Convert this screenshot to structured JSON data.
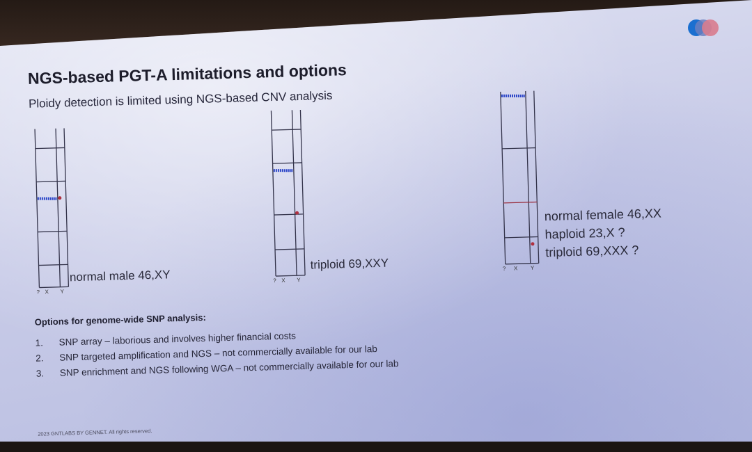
{
  "slide": {
    "title": "NGS-based PGT-A limitations and options",
    "subtitle": "Ploidy detection is limited using NGS-based CNV analysis"
  },
  "plots": [
    {
      "label": "normal male 46,XY",
      "axis_labels": [
        "?",
        "X",
        "Y"
      ]
    },
    {
      "label": "triploid 69,XXY",
      "axis_labels": [
        "?",
        "X",
        "Y"
      ]
    },
    {
      "labels": [
        "normal female 46,XX",
        "haploid 23,X ?",
        "triploid 69,XXX ?"
      ],
      "axis_labels": [
        "?",
        "X",
        "Y"
      ]
    }
  ],
  "options": {
    "heading": "Options for genome-wide SNP analysis:",
    "items": [
      {
        "num": "1.",
        "text": "SNP array – laborious and involves higher financial costs"
      },
      {
        "num": "2.",
        "text": "SNP targeted amplification and NGS – not commercially available for our lab"
      },
      {
        "num": "3.",
        "text": "SNP enrichment and NGS following WGA – not commercially available for our lab"
      }
    ]
  },
  "footer": "2023 GNTLABS BY GENNET. All rights reserved.",
  "colors": {
    "data_blue": "#2c46c8",
    "accent_red": "#b03040",
    "logo_blue": "#1a6fd0",
    "logo_pink": "#d87c8e"
  }
}
